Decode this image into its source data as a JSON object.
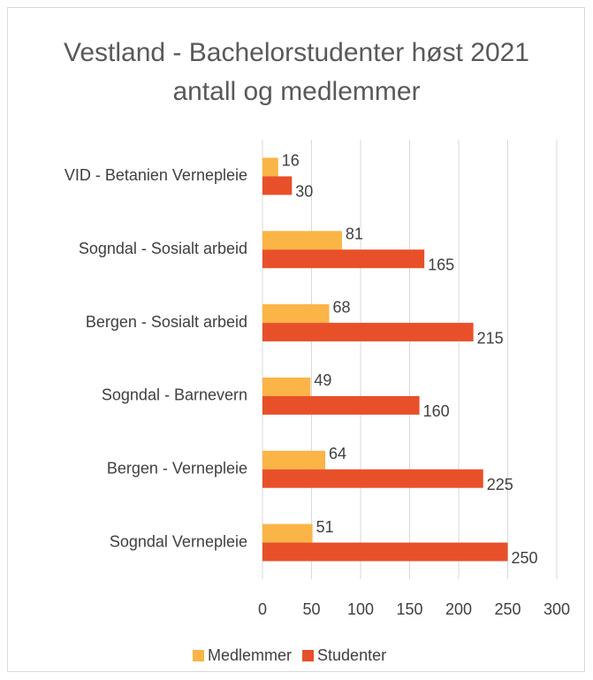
{
  "chart_data": {
    "type": "hbar",
    "title": "Vestland - Bachelorstudenter høst 2021 antall og medlemmer",
    "categories": [
      "VID - Betanien Vernepleie",
      "Sogndal - Sosialt arbeid",
      "Bergen - Sosialt arbeid",
      "Sogndal - Barnevern",
      "Bergen - Vernepleie",
      "Sogndal Vernepleie"
    ],
    "series": [
      {
        "name": "Medlemmer",
        "color": "#fbb446",
        "values": [
          16,
          81,
          68,
          49,
          64,
          51
        ]
      },
      {
        "name": "Studenter",
        "color": "#e8502a",
        "values": [
          30,
          165,
          215,
          160,
          225,
          250
        ]
      }
    ],
    "xlim": [
      0,
      300
    ],
    "xticks": [
      0,
      50,
      100,
      150,
      200,
      250,
      300
    ],
    "grid": true,
    "legend": "bottom"
  }
}
